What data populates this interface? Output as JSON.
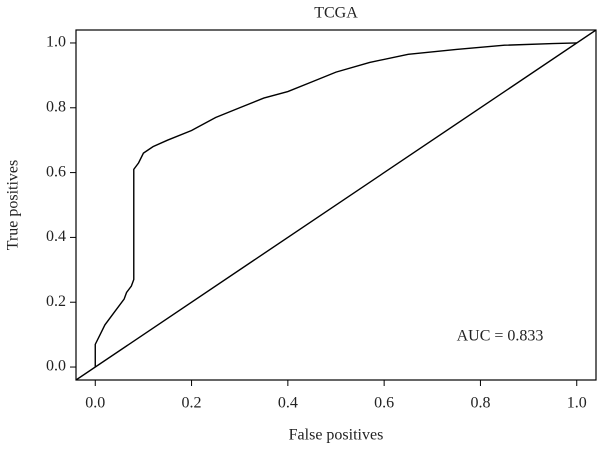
{
  "chart_data": {
    "type": "line",
    "title": "TCGA",
    "xlabel": "False positives",
    "ylabel": "True positives",
    "annotation": "AUC = 0.833",
    "series": [
      {
        "color": "#000000",
        "x": [
          0,
          0,
          0.01,
          0.02,
          0.04,
          0.06,
          0.065,
          0.075,
          0.08,
          0.08,
          0.09,
          0.1,
          0.12,
          0.15,
          0.2,
          0.25,
          0.3,
          0.35,
          0.4,
          0.45,
          0.5,
          0.57,
          0.65,
          0.75,
          0.85,
          0.95,
          1
        ],
        "values": [
          0,
          0.07,
          0.1,
          0.13,
          0.17,
          0.21,
          0.23,
          0.25,
          0.27,
          0.61,
          0.63,
          0.66,
          0.68,
          0.7,
          0.73,
          0.77,
          0.8,
          0.83,
          0.85,
          0.88,
          0.91,
          0.94,
          0.965,
          0.98,
          0.993,
          0.998,
          1
        ]
      },
      {
        "color": "#000000",
        "x": [
          -0.04,
          1.04
        ],
        "values": [
          -0.04,
          1.04
        ]
      }
    ],
    "xlim": [
      -0.04,
      1.04
    ],
    "ylim": [
      -0.04,
      1.04
    ],
    "xticks": [
      {
        "value": 0,
        "label": "0.0"
      },
      0.2,
      0.4,
      0.6,
      0.8,
      {
        "value": 1,
        "label": "1.0"
      }
    ],
    "yticks": [
      {
        "value": 0,
        "label": "0.0"
      },
      0.2,
      0.4,
      0.6,
      0.8,
      {
        "value": 1,
        "label": "1.0"
      }
    ]
  }
}
